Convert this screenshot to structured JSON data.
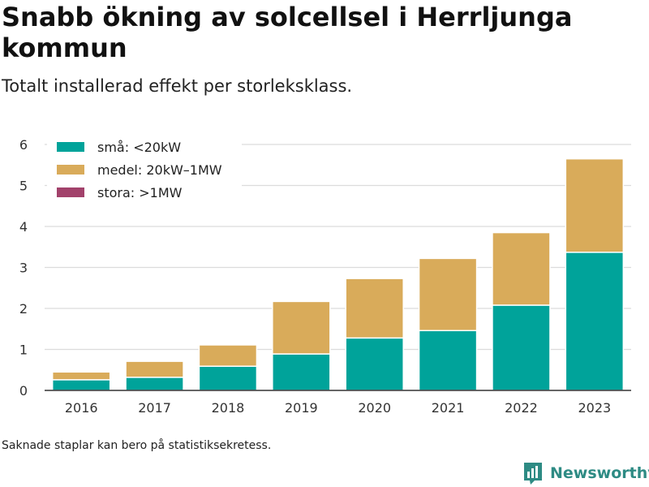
{
  "title": "Snabb ökning av solcellsel i Herrljunga kommun",
  "subtitle": "Totalt installerad effekt per storleksklass.",
  "footnote": "Saknade staplar kan bero på statistiksekretess.",
  "brand": {
    "name": "Newsworthy",
    "icon": "newsworthy-logo-icon"
  },
  "chart_data": {
    "type": "bar",
    "stacked": true,
    "categories": [
      "2016",
      "2017",
      "2018",
      "2019",
      "2020",
      "2021",
      "2022",
      "2023"
    ],
    "series": [
      {
        "name": "små: <20kW",
        "color": "#00a39a",
        "values": [
          0.26,
          0.32,
          0.59,
          0.89,
          1.28,
          1.46,
          2.08,
          3.37
        ]
      },
      {
        "name": "medel: 20kW–1MW",
        "color": "#d9ab5a",
        "values": [
          0.19,
          0.39,
          0.52,
          1.28,
          1.45,
          1.76,
          1.77,
          2.28
        ]
      },
      {
        "name": "stora: >1MW",
        "color": "#a2426b",
        "values": [
          0,
          0,
          0,
          0,
          0,
          0,
          0,
          0
        ]
      }
    ],
    "yticks": [
      "0",
      "1",
      "2",
      "3",
      "4",
      "5",
      "6"
    ],
    "ylim": [
      0,
      6
    ],
    "grid": true,
    "legend_position": "top-left"
  }
}
